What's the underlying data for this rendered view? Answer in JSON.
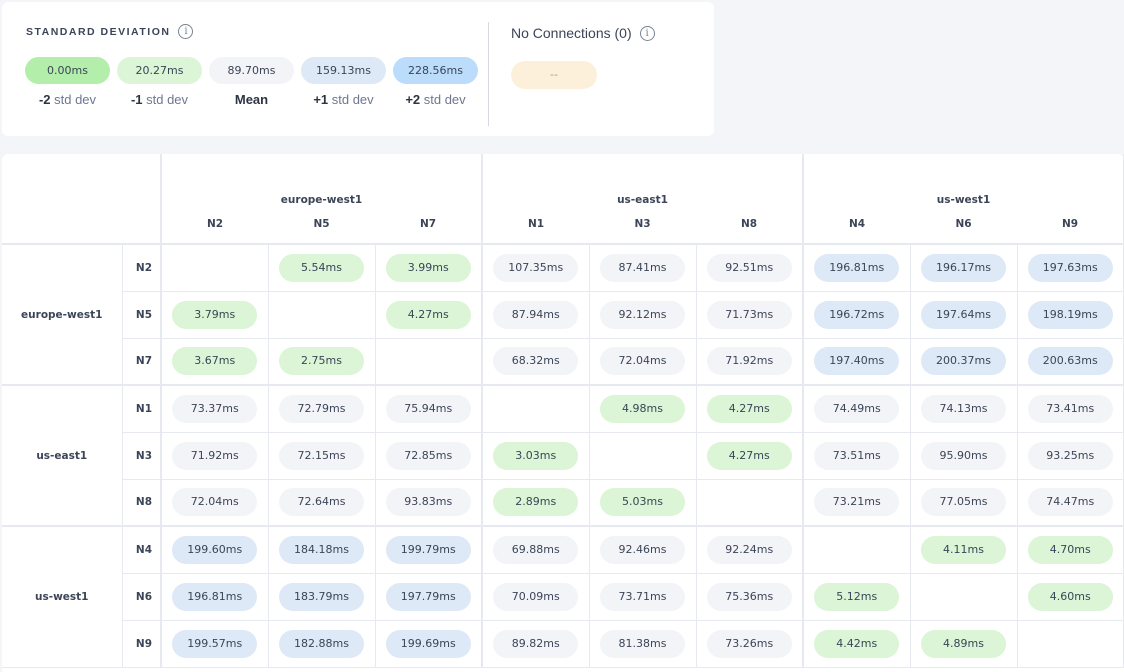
{
  "legend": {
    "title": "STANDARD DEVIATION",
    "info_icon": "info-icon",
    "levels": [
      {
        "value": "0.00ms",
        "prefix": "-2",
        "suffix": " std dev",
        "tone": "g2",
        "color": "#b3eeaa"
      },
      {
        "value": "20.27ms",
        "prefix": "-1",
        "suffix": " std dev",
        "tone": "g1",
        "color": "#dbf5d6"
      },
      {
        "value": "89.70ms",
        "prefix": "Mean",
        "suffix": "",
        "tone": "m",
        "color": "#f3f4f8"
      },
      {
        "value": "159.13ms",
        "prefix": "+1",
        "suffix": " std dev",
        "tone": "b1",
        "color": "#dde9f6"
      },
      {
        "value": "228.56ms",
        "prefix": "+2",
        "suffix": " std dev",
        "tone": "b2",
        "color": "#bbdcfb"
      }
    ],
    "no_connections": {
      "title": "No Connections (0)",
      "value": "--",
      "color": "#fdf0db"
    }
  },
  "matrix": {
    "regions": [
      {
        "name": "europe-west1",
        "nodes": [
          "N2",
          "N5",
          "N7"
        ]
      },
      {
        "name": "us-east1",
        "nodes": [
          "N1",
          "N3",
          "N8"
        ]
      },
      {
        "name": "us-west1",
        "nodes": [
          "N4",
          "N6",
          "N9"
        ]
      }
    ],
    "rows": [
      [
        "",
        "5.54ms",
        "3.99ms",
        "107.35ms",
        "87.41ms",
        "92.51ms",
        "196.81ms",
        "196.17ms",
        "197.63ms"
      ],
      [
        "3.79ms",
        "",
        "4.27ms",
        "87.94ms",
        "92.12ms",
        "71.73ms",
        "196.72ms",
        "197.64ms",
        "198.19ms"
      ],
      [
        "3.67ms",
        "2.75ms",
        "",
        "68.32ms",
        "72.04ms",
        "71.92ms",
        "197.40ms",
        "200.37ms",
        "200.63ms"
      ],
      [
        "73.37ms",
        "72.79ms",
        "75.94ms",
        "",
        "4.98ms",
        "4.27ms",
        "74.49ms",
        "74.13ms",
        "73.41ms"
      ],
      [
        "71.92ms",
        "72.15ms",
        "72.85ms",
        "3.03ms",
        "",
        "4.27ms",
        "73.51ms",
        "95.90ms",
        "93.25ms"
      ],
      [
        "72.04ms",
        "72.64ms",
        "93.83ms",
        "2.89ms",
        "5.03ms",
        "",
        "73.21ms",
        "77.05ms",
        "74.47ms"
      ],
      [
        "199.60ms",
        "184.18ms",
        "199.79ms",
        "69.88ms",
        "92.46ms",
        "92.24ms",
        "",
        "4.11ms",
        "4.70ms"
      ],
      [
        "196.81ms",
        "183.79ms",
        "197.79ms",
        "70.09ms",
        "73.71ms",
        "75.36ms",
        "5.12ms",
        "",
        "4.60ms"
      ],
      [
        "199.57ms",
        "182.88ms",
        "199.69ms",
        "89.82ms",
        "81.38ms",
        "73.26ms",
        "4.42ms",
        "4.89ms",
        ""
      ]
    ]
  }
}
